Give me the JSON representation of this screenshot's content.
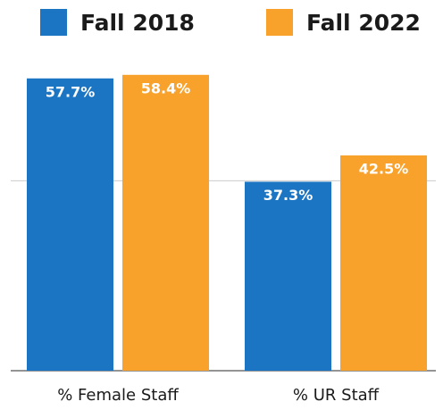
{
  "chart_data": {
    "type": "bar",
    "categories": [
      "% Female Staff",
      "% UR Staff"
    ],
    "series": [
      {
        "name": "Fall 2018",
        "color": "#1b75c3",
        "values": [
          57.7,
          37.3
        ],
        "value_labels": [
          "57.7%",
          "37.3%"
        ]
      },
      {
        "name": "Fall 2022",
        "color": "#f8a22c",
        "values": [
          58.4,
          42.5
        ],
        "value_labels": [
          "58.4%",
          "42.5%"
        ]
      }
    ],
    "ylim": [
      0,
      73
    ],
    "yticks": [
      0,
      37.5
    ],
    "grid": true,
    "legend": "top"
  }
}
